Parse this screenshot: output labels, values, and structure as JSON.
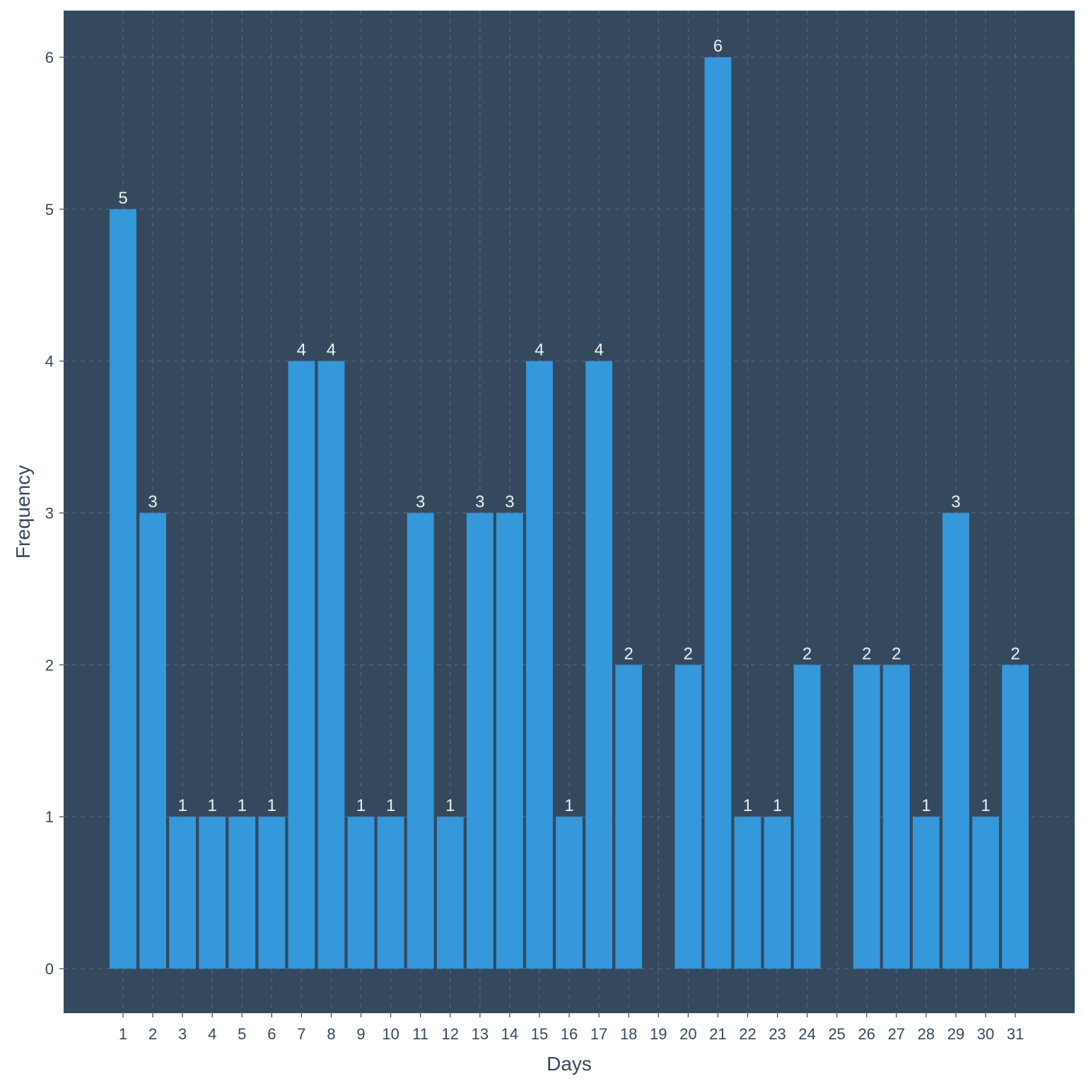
{
  "chart_data": {
    "type": "bar",
    "title": "",
    "xlabel": "Days",
    "ylabel": "Frequency",
    "categories": [
      "1",
      "2",
      "3",
      "4",
      "5",
      "6",
      "7",
      "8",
      "9",
      "10",
      "11",
      "12",
      "13",
      "14",
      "15",
      "16",
      "17",
      "18",
      "19",
      "20",
      "21",
      "22",
      "23",
      "24",
      "25",
      "26",
      "27",
      "28",
      "29",
      "30",
      "31"
    ],
    "values": [
      5,
      3,
      1,
      1,
      1,
      1,
      4,
      4,
      1,
      1,
      3,
      1,
      3,
      3,
      4,
      1,
      4,
      2,
      null,
      2,
      6,
      1,
      1,
      2,
      null,
      2,
      2,
      1,
      3,
      1,
      2
    ],
    "data_labels": [
      "5",
      "3",
      "1",
      "1",
      "1",
      "1",
      "4",
      "4",
      "1",
      "1",
      "3",
      "1",
      "3",
      "3",
      "4",
      "1",
      "4",
      "2",
      "",
      "2",
      "6",
      "1",
      "1",
      "2",
      "",
      "2",
      "2",
      "1",
      "3",
      "1",
      "2"
    ],
    "ylim": [
      -0.3,
      6.3
    ],
    "yticks": [
      0,
      1,
      2,
      3,
      4,
      5,
      6
    ],
    "grid": true,
    "legend": "none",
    "colors": {
      "panel_background": "#34495e",
      "bar": "#3498db",
      "grid": "#4f6680",
      "data_label": "#ecf0f1",
      "axis_text": "#34495e"
    }
  }
}
